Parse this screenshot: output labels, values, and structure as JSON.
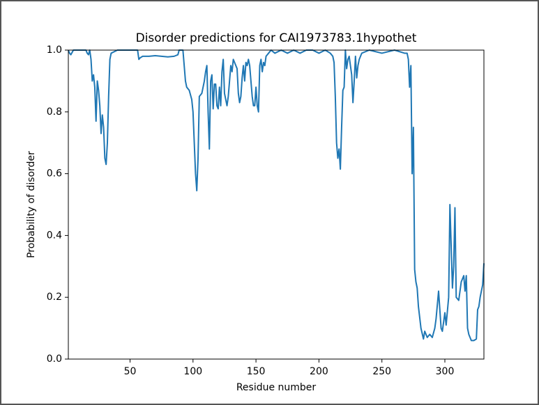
{
  "chart_data": {
    "type": "line",
    "title": "Disorder predictions for CAI1973783.1hypothet",
    "x_label": "Residue number",
    "y_label": "Probability of disorder",
    "xlim": [
      1,
      331
    ],
    "ylim": [
      0.0,
      1.0
    ],
    "xticks": [
      50,
      100,
      150,
      200,
      250,
      300
    ],
    "yticks": [
      {
        "value": 0.0,
        "label": "0.0"
      },
      {
        "value": 0.2,
        "label": "0.2"
      },
      {
        "value": 0.4,
        "label": "0.4"
      },
      {
        "value": 0.6,
        "label": "0.6"
      },
      {
        "value": 0.8,
        "label": "0.8"
      },
      {
        "value": 1.0,
        "label": "1.0"
      }
    ],
    "color": "#1f77b4",
    "x": [
      1,
      2,
      3,
      5,
      8,
      12,
      15,
      16,
      17,
      18,
      19,
      20,
      21,
      22,
      23,
      24,
      25,
      26,
      27,
      28,
      29,
      30,
      31,
      32,
      33,
      34,
      35,
      40,
      50,
      56,
      57,
      58,
      60,
      65,
      70,
      75,
      80,
      85,
      88,
      89,
      92,
      93,
      94,
      95,
      97,
      99,
      100,
      101,
      102,
      103,
      104,
      105,
      107,
      109,
      110,
      111,
      112,
      113,
      114,
      115,
      116,
      117,
      118,
      119,
      120,
      121,
      122,
      123,
      124,
      125,
      126,
      127,
      128,
      129,
      130,
      131,
      132,
      133,
      135,
      136,
      137,
      138,
      139,
      140,
      141,
      142,
      143,
      144,
      145,
      146,
      147,
      148,
      149,
      150,
      151,
      152,
      153,
      154,
      155,
      156,
      157,
      158,
      160,
      162,
      165,
      170,
      175,
      180,
      185,
      190,
      195,
      200,
      205,
      209,
      211,
      212,
      213,
      214,
      215,
      216,
      217,
      218,
      219,
      220,
      221,
      222,
      223,
      224,
      225,
      226,
      227,
      228,
      229,
      230,
      231,
      232,
      233,
      234,
      240,
      250,
      260,
      268,
      270,
      271,
      272,
      273,
      274,
      275,
      276,
      277,
      278,
      279,
      281,
      283,
      284,
      286,
      288,
      290,
      292,
      293,
      295,
      297,
      298,
      300,
      301,
      303,
      304,
      306,
      307,
      308,
      309,
      311,
      313,
      315,
      316,
      317,
      318,
      319,
      321,
      323,
      325,
      326,
      327,
      328,
      330,
      331
    ],
    "values": [
      1.0,
      0.99,
      0.985,
      1.0,
      1.0,
      1.0,
      1.0,
      0.99,
      0.985,
      1.0,
      0.97,
      0.9,
      0.92,
      0.88,
      0.77,
      0.9,
      0.87,
      0.82,
      0.73,
      0.79,
      0.75,
      0.65,
      0.63,
      0.7,
      0.85,
      0.97,
      0.99,
      1.0,
      1.0,
      1.0,
      0.97,
      0.975,
      0.98,
      0.98,
      0.982,
      0.98,
      0.978,
      0.98,
      0.985,
      1.0,
      1.0,
      0.95,
      0.9,
      0.88,
      0.87,
      0.84,
      0.8,
      0.7,
      0.6,
      0.545,
      0.65,
      0.85,
      0.86,
      0.9,
      0.93,
      0.95,
      0.8,
      0.68,
      0.9,
      0.92,
      0.81,
      0.89,
      0.89,
      0.82,
      0.81,
      0.88,
      0.82,
      0.93,
      0.97,
      0.86,
      0.84,
      0.82,
      0.85,
      0.9,
      0.95,
      0.93,
      0.97,
      0.96,
      0.94,
      0.86,
      0.83,
      0.85,
      0.91,
      0.95,
      0.9,
      0.96,
      0.95,
      0.97,
      0.95,
      0.9,
      0.85,
      0.82,
      0.82,
      0.88,
      0.82,
      0.8,
      0.95,
      0.97,
      0.93,
      0.96,
      0.95,
      0.98,
      0.99,
      1.0,
      0.99,
      1.0,
      0.99,
      1.0,
      0.99,
      1.0,
      1.0,
      0.99,
      1.0,
      0.99,
      0.98,
      0.96,
      0.85,
      0.7,
      0.65,
      0.68,
      0.615,
      0.75,
      0.87,
      0.88,
      1.0,
      0.94,
      0.97,
      0.98,
      0.95,
      0.92,
      0.83,
      0.9,
      0.98,
      0.91,
      0.95,
      0.97,
      0.98,
      0.99,
      1.0,
      0.99,
      1.0,
      0.99,
      0.99,
      0.97,
      0.88,
      0.95,
      0.6,
      0.75,
      0.29,
      0.25,
      0.23,
      0.17,
      0.1,
      0.065,
      0.09,
      0.07,
      0.08,
      0.07,
      0.1,
      0.13,
      0.22,
      0.1,
      0.09,
      0.15,
      0.11,
      0.2,
      0.5,
      0.23,
      0.3,
      0.49,
      0.2,
      0.19,
      0.25,
      0.27,
      0.22,
      0.27,
      0.1,
      0.08,
      0.06,
      0.06,
      0.065,
      0.16,
      0.17,
      0.2,
      0.24,
      0.31
    ]
  }
}
